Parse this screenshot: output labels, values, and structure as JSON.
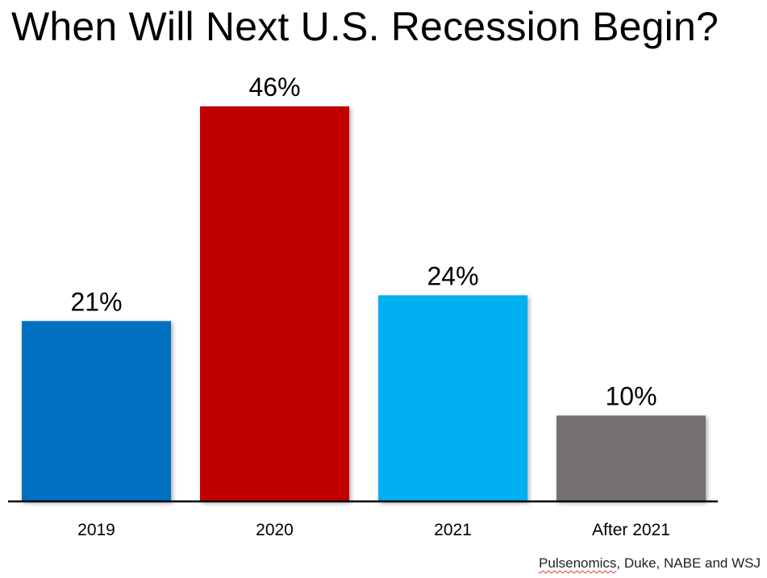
{
  "chart_data": {
    "type": "bar",
    "title": "When Will Next U.S. Recession Begin?",
    "categories": [
      "2019",
      "2020",
      "2021",
      "After 2021"
    ],
    "values": [
      21,
      46,
      24,
      10
    ],
    "value_labels": [
      "21%",
      "46%",
      "24%",
      "10%"
    ],
    "colors": [
      "#0070C0",
      "#C00000",
      "#00B0F0",
      "#767171"
    ],
    "xlabel": "",
    "ylabel": "",
    "ylim": [
      0,
      46
    ],
    "grid": false,
    "legend": "none"
  },
  "source": {
    "first": "Pulsenomics",
    "rest": ", Duke, NABE and WSJ"
  }
}
